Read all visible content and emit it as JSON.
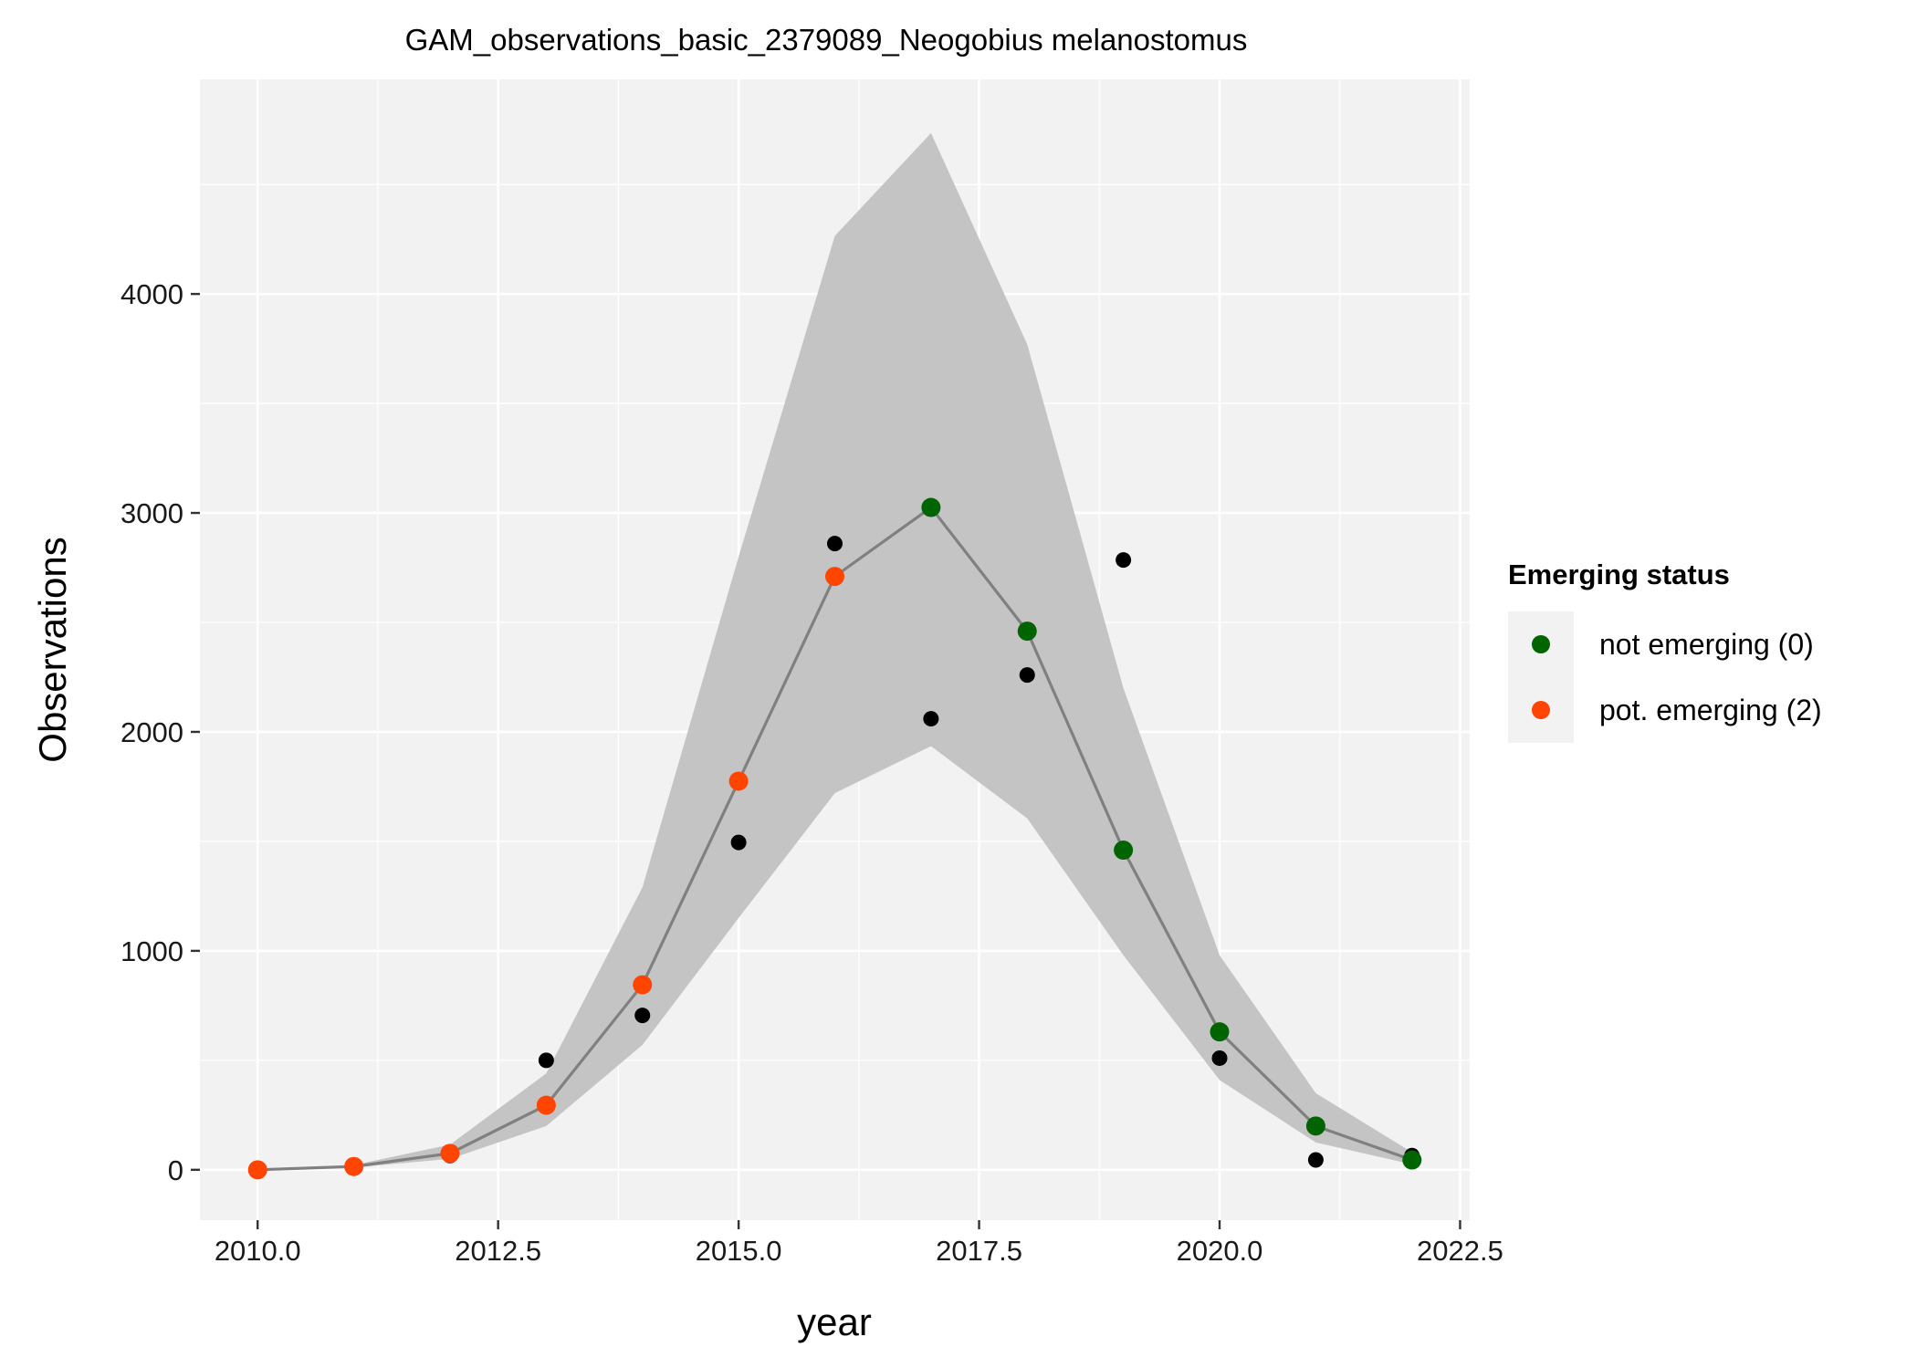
{
  "chart_data": {
    "type": "line",
    "title": "GAM_observations_basic_2379089_Neogobius melanostomus",
    "xlabel": "year",
    "ylabel": "Observations",
    "xlim": [
      2009.4,
      2022.6
    ],
    "ylim": [
      -230,
      4980
    ],
    "x_ticks": [
      2010.0,
      2012.5,
      2015.0,
      2017.5,
      2020.0,
      2022.5
    ],
    "x_tick_labels": [
      "2010.0",
      "2012.5",
      "2015.0",
      "2017.5",
      "2020.0",
      "2022.5"
    ],
    "y_ticks": [
      0,
      1000,
      2000,
      3000,
      4000
    ],
    "y_tick_labels": [
      "0",
      "1000",
      "2000",
      "3000",
      "4000"
    ],
    "grid": true,
    "legend_position": "right",
    "legend_title": "Emerging status",
    "legend_entries": [
      {
        "label": "not emerging (0)",
        "color": "#006400"
      },
      {
        "label": "pot. emerging (2)",
        "color": "#FF4500"
      }
    ],
    "fitted": {
      "x": [
        2010,
        2011,
        2012,
        2013,
        2014,
        2015,
        2016,
        2017,
        2018,
        2019,
        2020,
        2021,
        2022
      ],
      "y": [
        0,
        15,
        75,
        295,
        845,
        1775,
        2710,
        3025,
        2460,
        1460,
        630,
        200,
        45
      ],
      "lower": [
        0,
        10,
        50,
        200,
        570,
        1150,
        1720,
        1935,
        1605,
        980,
        410,
        125,
        25
      ],
      "upper": [
        0,
        22,
        115,
        440,
        1290,
        2800,
        4265,
        4735,
        3770,
        2200,
        980,
        350,
        80
      ],
      "status": [
        2,
        2,
        2,
        2,
        2,
        2,
        2,
        0,
        0,
        0,
        0,
        0,
        0
      ]
    },
    "observed": {
      "x": [
        2010,
        2011,
        2012,
        2013,
        2014,
        2015,
        2016,
        2017,
        2018,
        2019,
        2020,
        2021,
        2022
      ],
      "y": [
        0,
        15,
        65,
        500,
        705,
        1495,
        2860,
        2060,
        2260,
        2785,
        510,
        45,
        65
      ]
    },
    "colors": {
      "not_emerging": "#006400",
      "pot_emerging": "#FF4500",
      "observed": "#000000",
      "line": "#808080",
      "ribbon": "#c4c4c4",
      "panel": "#f2f2f2",
      "grid": "#ffffff"
    }
  }
}
